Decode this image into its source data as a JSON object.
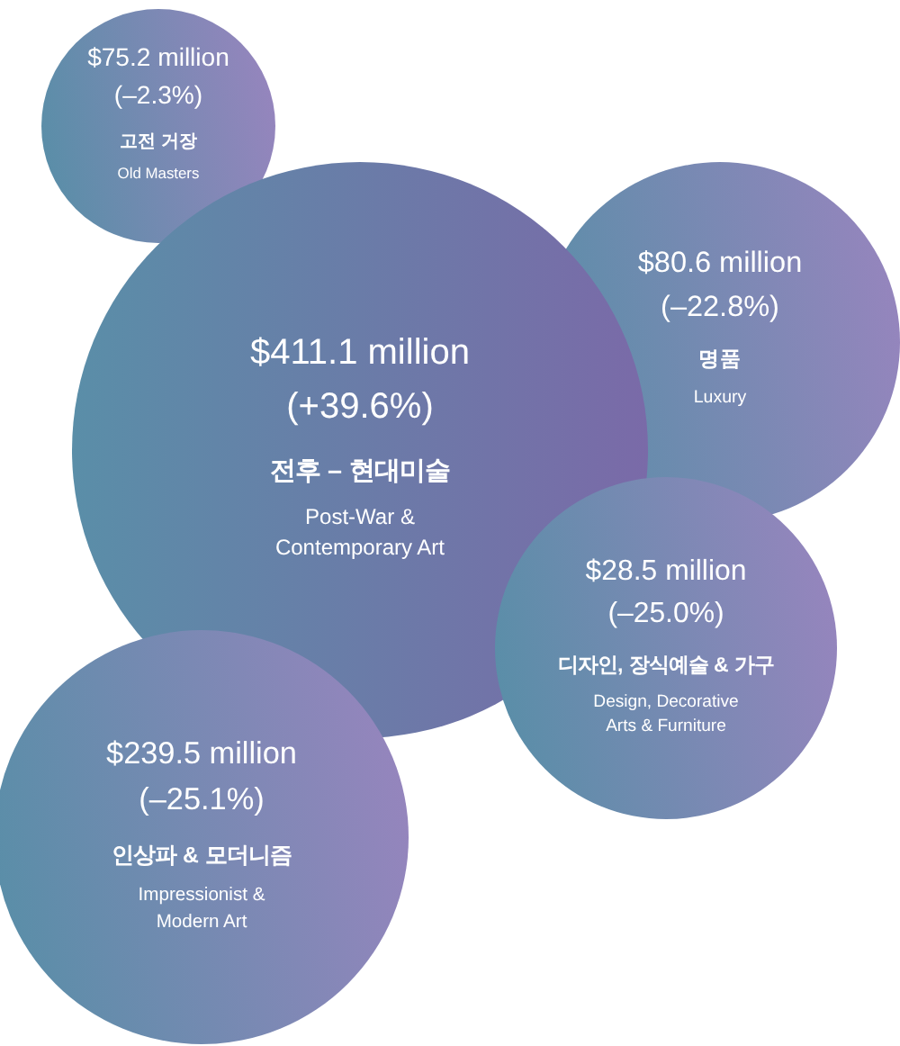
{
  "chart_data": {
    "type": "other",
    "categories": [
      "고전 거장\nOld Masters",
      "명품\nLuxury",
      "전후 – 현대미술\nPost-War &\nContemporary Art",
      "디자인, 장식예술 & 가구\nDesign, Decorative\nArts & Furniture",
      "인상파 & 모더니즘\nImpressionist &\nModern Art"
    ],
    "series": [
      {
        "values": [
          75.2,
          80.6,
          411.1,
          28.5,
          239.5
        ],
        "value_labels": [
          "$75.2 million",
          "$80.6 million",
          "$411.1 million",
          "$28.5 million",
          "$239.5 million"
        ]
      },
      {
        "values": [
          -2.3,
          -22.8,
          39.6,
          -25.0,
          -25.1
        ],
        "value_labels": [
          "(–2.3%)",
          "(–22.8%)",
          "(+39.6%)",
          "(–25.0%)",
          "(–25.1%)"
        ]
      }
    ]
  }
}
